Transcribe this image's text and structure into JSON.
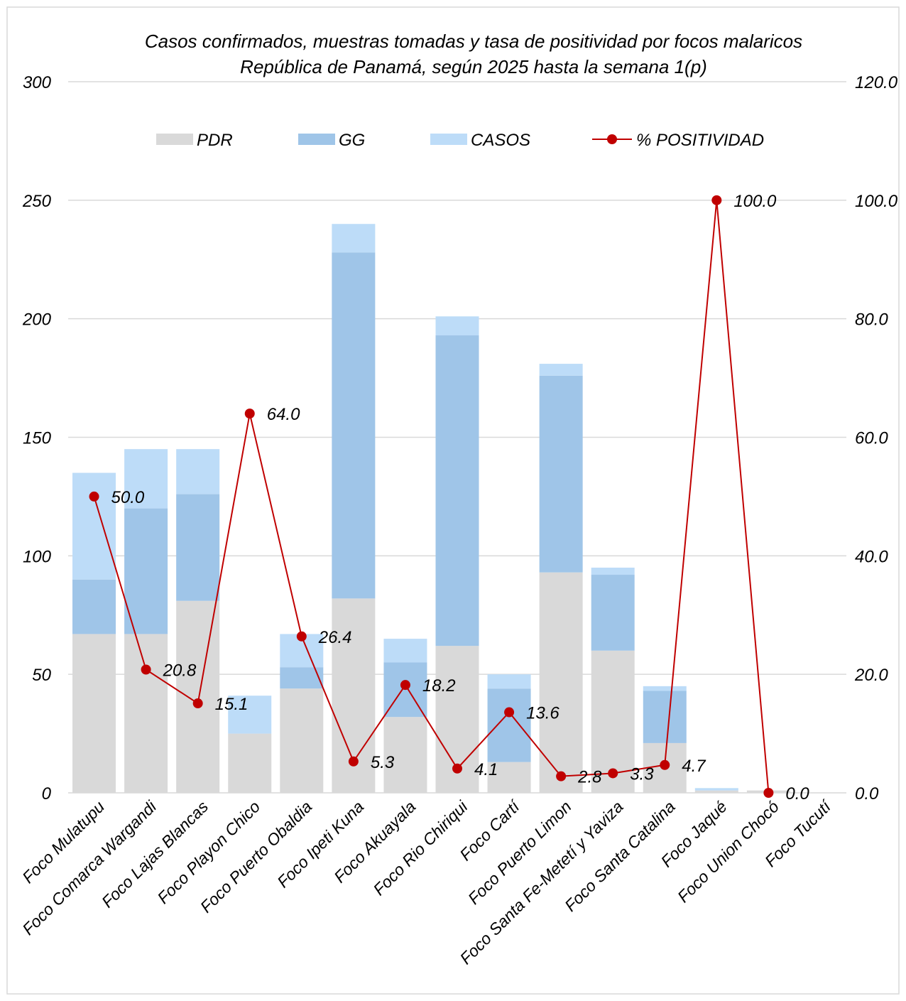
{
  "chart_data": {
    "type": "bar",
    "title": "Casos confirmados, muestras tomadas y  tasa de positividad por focos malaricos",
    "subtitle": "República de Panamá, según 2025 hasta la semana 1(p)",
    "categories": [
      "Foco Mulatupu",
      "Foco Comarca Wargandi",
      "Foco Lajas Blancas",
      "Foco Playon Chico",
      "Foco Puerto Obaldia",
      "Foco Ipeti Kuna",
      "Foco Akuayala",
      "Foco Rio Chiriqui",
      "Foco Cartí",
      "Foco Puerto Limon",
      "Foco Santa Fe-Metetí y Yaviza",
      "Foco Santa Catalina",
      "Foco Jaqué",
      "Foco Union Chocó",
      "Foco Tucutí"
    ],
    "series": [
      {
        "name": "PDR",
        "kind": "stacked-bar",
        "axis": "left",
        "color": "#d9d9d9",
        "values": [
          67,
          67,
          81,
          25,
          44,
          82,
          32,
          62,
          13,
          93,
          60,
          21,
          1,
          1,
          0
        ]
      },
      {
        "name": "GG",
        "kind": "stacked-bar",
        "axis": "left",
        "color": "#9fc5e8",
        "values": [
          23,
          53,
          45,
          0,
          9,
          146,
          23,
          131,
          31,
          83,
          32,
          22,
          0,
          0,
          0
        ]
      },
      {
        "name": "CASOS",
        "kind": "stacked-bar",
        "axis": "left",
        "color": "#bddcf8",
        "values": [
          45,
          25,
          19,
          16,
          14,
          12,
          10,
          8,
          6,
          5,
          3,
          2,
          1,
          0,
          0
        ]
      },
      {
        "name": "% POSITIVIDAD",
        "kind": "line",
        "axis": "right",
        "color": "#c00000",
        "values": [
          50.0,
          20.8,
          15.1,
          64.0,
          26.4,
          5.3,
          18.2,
          4.1,
          13.6,
          2.8,
          3.3,
          4.7,
          100.0,
          0.0,
          null
        ],
        "labels": [
          "50.0",
          "20.8",
          "15.1",
          "64.0",
          "26.4",
          "5.3",
          "18.2",
          "4.1",
          "13.6",
          "2.8",
          "3.3",
          "4.7",
          "100.0",
          "0.0",
          ""
        ]
      }
    ],
    "y_left": {
      "min": 0,
      "max": 300,
      "ticks": [
        "0",
        "50",
        "100",
        "150",
        "200",
        "250",
        "300"
      ]
    },
    "y_right": {
      "min": 0,
      "max": 120,
      "ticks": [
        "0.0",
        "20.0",
        "40.0",
        "60.0",
        "80.0",
        "100.0",
        "120.0"
      ]
    },
    "grid": true,
    "legend": "top"
  }
}
